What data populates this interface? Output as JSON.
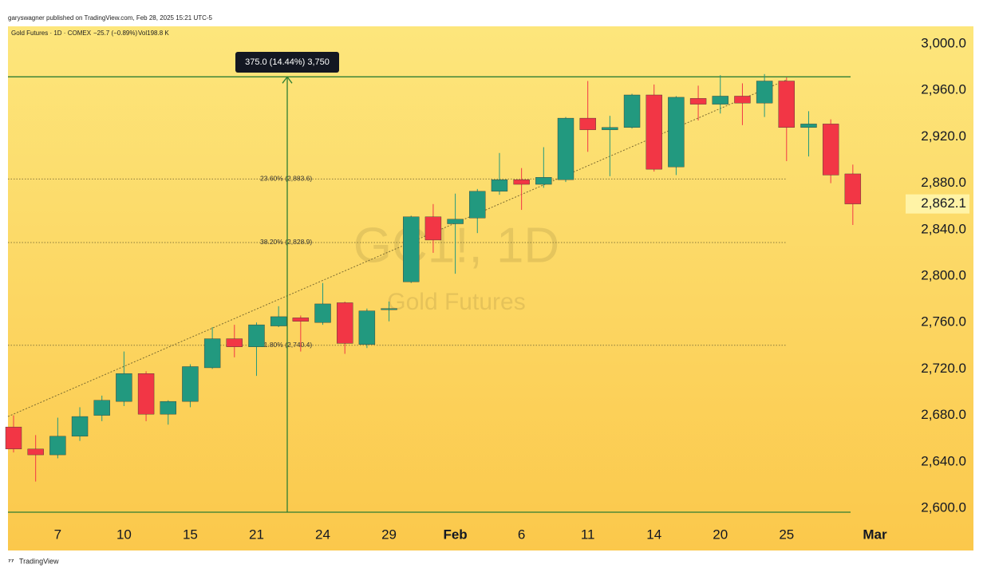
{
  "chart_data": {
    "type": "candlestick",
    "attribution": "garyswagner published on TradingView.com, Feb 28, 2025 15:21 UTC-5",
    "legend": {
      "symbol": "Gold Futures · 1D · COMEX",
      "change": "−25.7 (−0.89%)",
      "volume": "Vol198.8 K"
    },
    "watermark": "GC1!, 1D",
    "watermark_subtitle": "Gold Futures",
    "footer": "TradingView",
    "categories": [
      null,
      null,
      "7",
      null,
      null,
      "10",
      null,
      null,
      "15",
      null,
      null,
      "21",
      null,
      null,
      "24",
      null,
      null,
      "29",
      null,
      null,
      "Feb",
      null,
      null,
      "6",
      null,
      null,
      "11",
      null,
      null,
      "14",
      null,
      null,
      "20",
      null,
      null,
      "25",
      null,
      null,
      null,
      "Mar"
    ],
    "open": [
      2670,
      2651,
      2646,
      2662,
      2680,
      2692,
      2716,
      2681,
      2692,
      2721,
      2746,
      2739,
      2757,
      2764,
      2760,
      2777,
      2741,
      2771,
      2795,
      2851,
      2845,
      2850,
      2873,
      2883,
      2879,
      2883,
      2936,
      2926,
      2928,
      2956,
      2894,
      2953,
      2948,
      2955,
      2949,
      2968,
      2928,
      2931,
      2888,
      null
    ],
    "high": [
      2680,
      2663,
      2678,
      2687,
      2697,
      2735,
      2718,
      2693,
      2724,
      2756,
      2758,
      2760,
      2774,
      2766,
      2794,
      2778,
      2772,
      2778,
      2852,
      2862,
      2871,
      2875,
      2906,
      2893,
      2911,
      2937,
      2968,
      2938,
      2957,
      2965,
      2955,
      2964,
      2973,
      2966,
      2974,
      2971,
      2942,
      2935,
      2896,
      null
    ],
    "low": [
      2648,
      2623,
      2643,
      2658,
      2675,
      2688,
      2675,
      2672,
      2687,
      2720,
      2730,
      2714,
      2756,
      2735,
      2758,
      2733,
      2738,
      2761,
      2794,
      2820,
      2802,
      2837,
      2870,
      2857,
      2876,
      2881,
      2907,
      2886,
      2927,
      2890,
      2887,
      2934,
      2940,
      2930,
      2937,
      2899,
      2903,
      2880,
      2844,
      null
    ],
    "close": [
      2651,
      2646,
      2662,
      2679,
      2693,
      2716,
      2681,
      2692,
      2722,
      2746,
      2739,
      2758,
      2765,
      2761,
      2776,
      2742,
      2770,
      2772,
      2851,
      2831,
      2849,
      2873,
      2883,
      2879,
      2885,
      2936,
      2926,
      2928,
      2956,
      2892,
      2954,
      2948,
      2955,
      2949,
      2968,
      2928,
      2931,
      2887,
      2862.1,
      null
    ],
    "up_color": "#22997f",
    "down_color": "#f23645",
    "ylim": [
      2563.6,
      3015.1
    ],
    "yticks": [
      {
        "value": 2600,
        "label": "2,600.0"
      },
      {
        "value": 2640,
        "label": "2,640.0"
      },
      {
        "value": 2680,
        "label": "2,680.0"
      },
      {
        "value": 2720,
        "label": "2,720.0"
      },
      {
        "value": 2760,
        "label": "2,760.0"
      },
      {
        "value": 2800,
        "label": "2,800.0"
      },
      {
        "value": 2840,
        "label": "2,840.0"
      },
      {
        "value": 2880,
        "label": "2,880.0"
      },
      {
        "value": 2920,
        "label": "2,920.0"
      },
      {
        "value": 2960,
        "label": "2,960.0"
      },
      {
        "value": 3000,
        "label": "3,000.0"
      }
    ],
    "last_price": {
      "value": 2862.1,
      "label": "2,862.1"
    },
    "fib_levels": [
      {
        "value": 2883.6,
        "label": "23.60% (2,883.6)"
      },
      {
        "value": 2828.9,
        "label": "38.20% (2,828.9)"
      },
      {
        "value": 2740.4,
        "label": "61.80% (2,740.4)"
      }
    ],
    "measure": {
      "label": "375.0 (14.44%) 3,750",
      "from": 2596.6,
      "to": 2971.6
    },
    "trendline": {
      "from": 2679,
      "to": 2969
    },
    "grid": false
  }
}
